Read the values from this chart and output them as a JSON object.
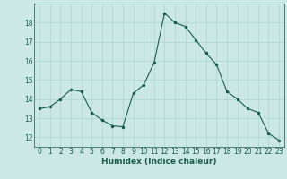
{
  "x": [
    0,
    1,
    2,
    3,
    4,
    5,
    6,
    7,
    8,
    9,
    10,
    11,
    12,
    13,
    14,
    15,
    16,
    17,
    18,
    19,
    20,
    21,
    22,
    23
  ],
  "y": [
    13.5,
    13.6,
    14.0,
    14.5,
    14.4,
    13.3,
    12.9,
    12.6,
    12.55,
    14.3,
    14.75,
    15.9,
    18.5,
    18.0,
    17.8,
    17.1,
    16.4,
    15.8,
    14.4,
    14.0,
    13.5,
    13.3,
    12.2,
    11.85
  ],
  "xlabel": "Humidex (Indice chaleur)",
  "bg_color": "#cce8e4",
  "grid_color": "#aad4cc",
  "line_color": "#1a5c4a",
  "marker_color": "#1a5c4a",
  "xlim": [
    -0.5,
    23.5
  ],
  "ylim": [
    11.5,
    19.0
  ],
  "yticks": [
    12,
    13,
    14,
    15,
    16,
    17,
    18
  ],
  "xticks": [
    0,
    1,
    2,
    3,
    4,
    5,
    6,
    7,
    8,
    9,
    10,
    11,
    12,
    13,
    14,
    15,
    16,
    17,
    18,
    19,
    20,
    21,
    22,
    23
  ],
  "tick_fontsize": 5.5,
  "xlabel_fontsize": 6.5
}
